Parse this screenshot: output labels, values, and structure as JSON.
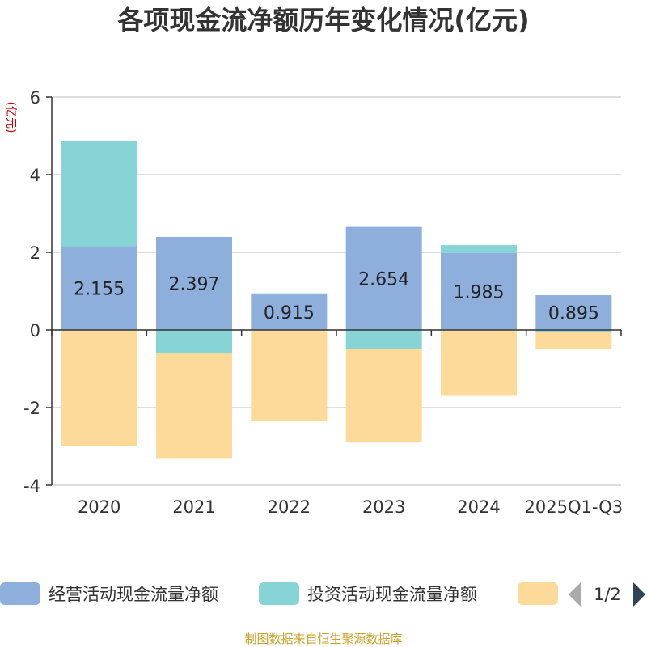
{
  "chart_data": {
    "type": "bar",
    "stacked": true,
    "title": "各项现金流净额历年变化情况(亿元)",
    "ylabel": "(亿元)",
    "xlabel": "",
    "ylim": [
      -4,
      6
    ],
    "yticks": [
      6,
      4,
      2,
      0,
      -2,
      -4
    ],
    "categories": [
      "2020",
      "2021",
      "2022",
      "2023",
      "2024",
      "2025Q1-Q3"
    ],
    "series": [
      {
        "name": "经营活动现金流量净额",
        "color": "#8eaedb",
        "values": [
          2.155,
          2.397,
          0.915,
          2.654,
          1.985,
          0.895
        ],
        "labels": [
          "2.155",
          "2.397",
          "0.915",
          "2.654",
          "1.985",
          "0.895"
        ]
      },
      {
        "name": "投资活动现金流量净额",
        "color": "#86d4d6",
        "values": [
          2.72,
          -0.6,
          0.03,
          -0.5,
          0.2,
          -0.05
        ]
      },
      {
        "name": "",
        "color": "#fdd99a",
        "values": [
          -3.0,
          -2.7,
          -2.35,
          -2.4,
          -1.7,
          -0.45
        ]
      }
    ],
    "legend_page": "1/2",
    "source": "制图数据来自恒生聚源数据库"
  }
}
